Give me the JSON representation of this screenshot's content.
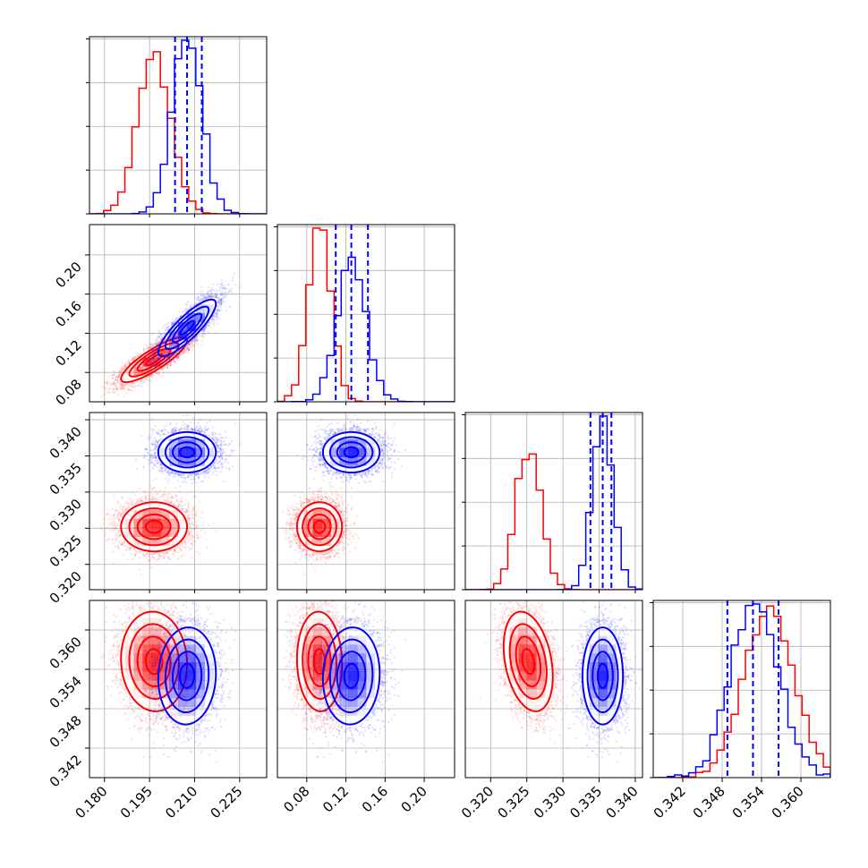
{
  "chart_data": {
    "type": "corner",
    "grid": true,
    "colors": {
      "series_a": "#ff0000",
      "series_b": "#0000ff"
    },
    "series": [
      {
        "color": "#ff0000",
        "mean": [
          0.1965,
          0.093,
          0.3252,
          0.3552
        ],
        "std": [
          0.0055,
          0.0115,
          0.0017,
          0.0038
        ],
        "corr": [
          [
            1,
            0.85,
            0,
            -0.05
          ],
          [
            0.85,
            1,
            0,
            -0.05
          ],
          [
            0,
            0,
            1,
            -0.3
          ],
          [
            -0.05,
            -0.05,
            -0.3,
            1
          ]
        ]
      },
      {
        "color": "#0000ff",
        "mean": [
          0.2075,
          0.1255,
          0.3355,
          0.353
        ],
        "std": [
          0.0048,
          0.0145,
          0.0014,
          0.0037
        ],
        "corr": [
          [
            1,
            0.85,
            0,
            0.05
          ],
          [
            0.85,
            1,
            0,
            0.05
          ],
          [
            0,
            0,
            1,
            0
          ],
          [
            0.05,
            0.05,
            0,
            1
          ]
        ]
      }
    ],
    "quantiles": {
      "color": "#0000ff",
      "values": [
        [
          0.2035,
          0.2075,
          0.2124
        ],
        [
          0.1096,
          0.1255,
          0.1425
        ],
        [
          0.3338,
          0.3355,
          0.3367
        ],
        [
          0.3488,
          0.3527,
          0.3566
        ]
      ]
    },
    "parameters": [
      {
        "range": [
          0.175,
          0.234
        ],
        "ticks": [
          0.18,
          0.195,
          0.21,
          0.225
        ],
        "tick_labels": [
          "0.180",
          "0.195",
          "0.210",
          "0.225"
        ]
      },
      {
        "range": [
          0.05,
          0.231
        ],
        "ticks": [
          0.08,
          0.12,
          0.16,
          0.2
        ],
        "tick_labels": [
          "0.08",
          "0.12",
          "0.16",
          "0.20"
        ]
      },
      {
        "range": [
          0.3165,
          0.341
        ],
        "ticks": [
          0.32,
          0.325,
          0.33,
          0.335,
          0.34
        ],
        "tick_labels": [
          "0.320",
          "0.325",
          "0.330",
          "0.335",
          "0.340"
        ]
      },
      {
        "range": [
          0.3375,
          0.3645
        ],
        "ticks": [
          0.342,
          0.348,
          0.354,
          0.36
        ],
        "tick_labels": [
          "0.342",
          "0.348",
          "0.354",
          "0.360"
        ]
      }
    ]
  }
}
